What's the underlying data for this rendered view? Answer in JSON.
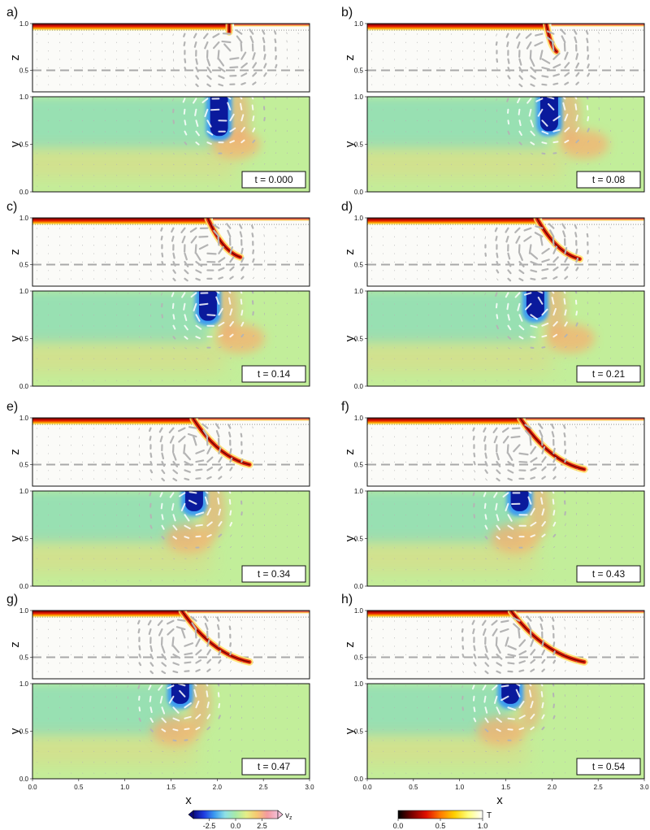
{
  "chart_data": {
    "type": "heatmap",
    "panels": [
      {
        "label": "a)",
        "time_label": "t = 0.000",
        "slab_x": 2.13,
        "slab_tip_x": 2.13,
        "slab_tip_z": 0.91,
        "blue_x": 2.02,
        "blue_y_low": 0.57,
        "anomaly_x": 2.2,
        "col": 0,
        "row": 0
      },
      {
        "label": "b)",
        "time_label": "t = 0.08",
        "slab_x": 1.94,
        "slab_tip_x": 2.05,
        "slab_tip_z": 0.7,
        "blue_x": 1.97,
        "blue_y_low": 0.62,
        "anomaly_x": 2.35,
        "col": 1,
        "row": 0
      },
      {
        "label": "c)",
        "time_label": "t = 0.14",
        "slab_x": 1.9,
        "slab_tip_x": 2.25,
        "slab_tip_z": 0.58,
        "blue_x": 1.9,
        "blue_y_low": 0.67,
        "anomaly_x": 2.25,
        "col": 0,
        "row": 1
      },
      {
        "label": "d)",
        "time_label": "t = 0.21",
        "slab_x": 1.84,
        "slab_tip_x": 2.3,
        "slab_tip_z": 0.56,
        "blue_x": 1.82,
        "blue_y_low": 0.7,
        "anomaly_x": 2.2,
        "col": 1,
        "row": 1
      },
      {
        "label": "e)",
        "time_label": "t = 0.34",
        "slab_x": 1.74,
        "slab_tip_x": 2.35,
        "slab_tip_z": 0.5,
        "blue_x": 1.75,
        "blue_y_low": 0.77,
        "anomaly_x": 1.7,
        "col": 0,
        "row": 2
      },
      {
        "label": "f)",
        "time_label": "t = 0.43",
        "slab_x": 1.66,
        "slab_tip_x": 2.35,
        "slab_tip_z": 0.45,
        "blue_x": 1.65,
        "blue_y_low": 0.77,
        "anomaly_x": 1.6,
        "col": 1,
        "row": 2
      },
      {
        "label": "g)",
        "time_label": "t = 0.47",
        "slab_x": 1.62,
        "slab_tip_x": 2.35,
        "slab_tip_z": 0.45,
        "blue_x": 1.6,
        "blue_y_low": 0.77,
        "anomaly_x": 1.55,
        "col": 0,
        "row": 3
      },
      {
        "label": "h)",
        "time_label": "t = 0.54",
        "slab_x": 1.56,
        "slab_tip_x": 2.35,
        "slab_tip_z": 0.45,
        "blue_x": 1.55,
        "blue_y_low": 0.77,
        "anomaly_x": 1.45,
        "col": 1,
        "row": 3
      }
    ],
    "axes": {
      "xlabel": "x",
      "zlabel": "z",
      "ylabel": "y",
      "xlim": [
        0.0,
        3.0
      ],
      "zlim": [
        0.0,
        1.0
      ],
      "ylim": [
        0.0,
        1.0
      ],
      "x_ticks": [
        "0.0",
        "0.5",
        "1.0",
        "1.5",
        "2.0",
        "2.5",
        "3.0"
      ],
      "z_ticks": [
        "0.5",
        "1.0"
      ],
      "y_ticks": [
        "0.0",
        "0.5",
        "1.0"
      ]
    },
    "colorbars": [
      {
        "variable": "v",
        "subscript": "z",
        "range": [
          -4.0,
          4.0
        ],
        "ticks": [
          -2.5,
          0.0,
          2.5
        ],
        "tick_labels": [
          "-2.5",
          "0.0",
          "2.5"
        ],
        "colors": [
          "#0a0a80",
          "#1e3ce0",
          "#3c9cf0",
          "#8ee0e6",
          "#a8eaa8",
          "#e4ee88",
          "#f6c870",
          "#f49aa0",
          "#f4c0d8"
        ]
      },
      {
        "variable": "T",
        "range": [
          0.0,
          1.0
        ],
        "ticks": [
          0.0,
          0.5,
          1.0
        ],
        "tick_labels": [
          "0.0",
          "0.5",
          "1.0"
        ],
        "colors": [
          "#000000",
          "#7a0000",
          "#e01000",
          "#ff7a00",
          "#ffd000",
          "#ffff80",
          "#ffffff"
        ]
      }
    ],
    "colors": {
      "background_green": "#c2ee9a",
      "cool_green": "#98e0b2",
      "warm": "#f3c476",
      "blue_core": "#0a1a9c",
      "vectors": "#b4b4b4"
    }
  }
}
